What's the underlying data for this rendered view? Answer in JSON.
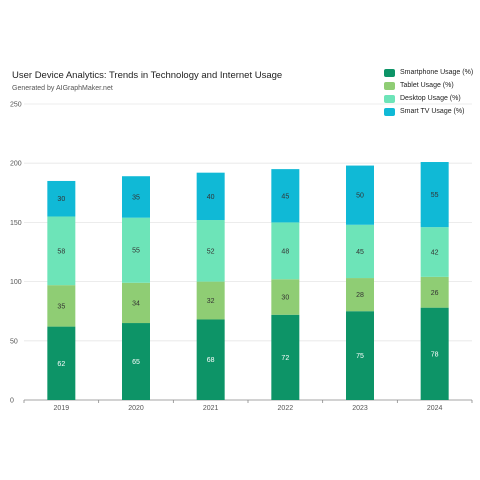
{
  "chart_data": {
    "type": "bar",
    "stacked": true,
    "title": "User Device Analytics: Trends in Technology and Internet Usage",
    "subtitle": "Generated by AIGraphMaker.net",
    "xlabel": "",
    "ylabel": "",
    "categories": [
      "2019",
      "2020",
      "2021",
      "2022",
      "2023",
      "2024"
    ],
    "ylim": [
      0,
      250
    ],
    "yticks": [
      0,
      50,
      100,
      150,
      200,
      250
    ],
    "grid": true,
    "legend_position": "top-right",
    "series": [
      {
        "name": "Smartphone Usage (%)",
        "color": "#0d9467",
        "values": [
          62,
          65,
          68,
          72,
          75,
          78
        ]
      },
      {
        "name": "Tablet Usage (%)",
        "color": "#8fcd74",
        "values": [
          35,
          34,
          32,
          30,
          28,
          26
        ]
      },
      {
        "name": "Desktop Usage (%)",
        "color": "#6de4b8",
        "values": [
          58,
          55,
          52,
          48,
          45,
          42
        ]
      },
      {
        "name": "Smart TV Usage (%)",
        "color": "#10b9d6",
        "values": [
          30,
          35,
          40,
          45,
          50,
          55
        ]
      }
    ]
  }
}
